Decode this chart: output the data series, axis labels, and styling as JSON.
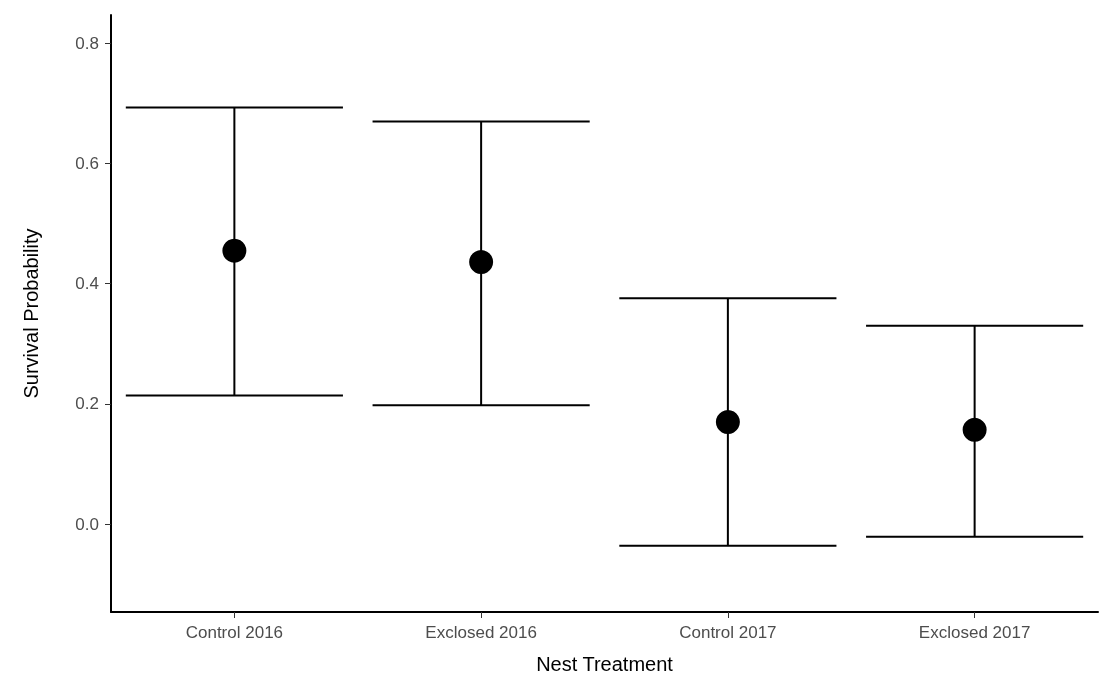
{
  "chart_data": {
    "type": "scatter",
    "xlabel": "Nest Treatment",
    "ylabel": "Survival Probability",
    "categories": [
      "Control 2016",
      "Exclosed 2016",
      "Control 2017",
      "Exclosed 2017"
    ],
    "color": "#000000",
    "values": [
      0.455,
      0.436,
      0.17,
      0.157
    ],
    "errors": [
      [
        0.214,
        0.693
      ],
      [
        0.198,
        0.67
      ],
      [
        -0.036,
        0.376
      ],
      [
        -0.021,
        0.33
      ]
    ],
    "ylim": [
      -0.146,
      0.847
    ],
    "yticks": [
      {
        "value": 0.0,
        "label": "0.0"
      },
      0.2,
      0.4,
      0.6,
      0.8
    ],
    "grid": false,
    "marker": "circle"
  }
}
